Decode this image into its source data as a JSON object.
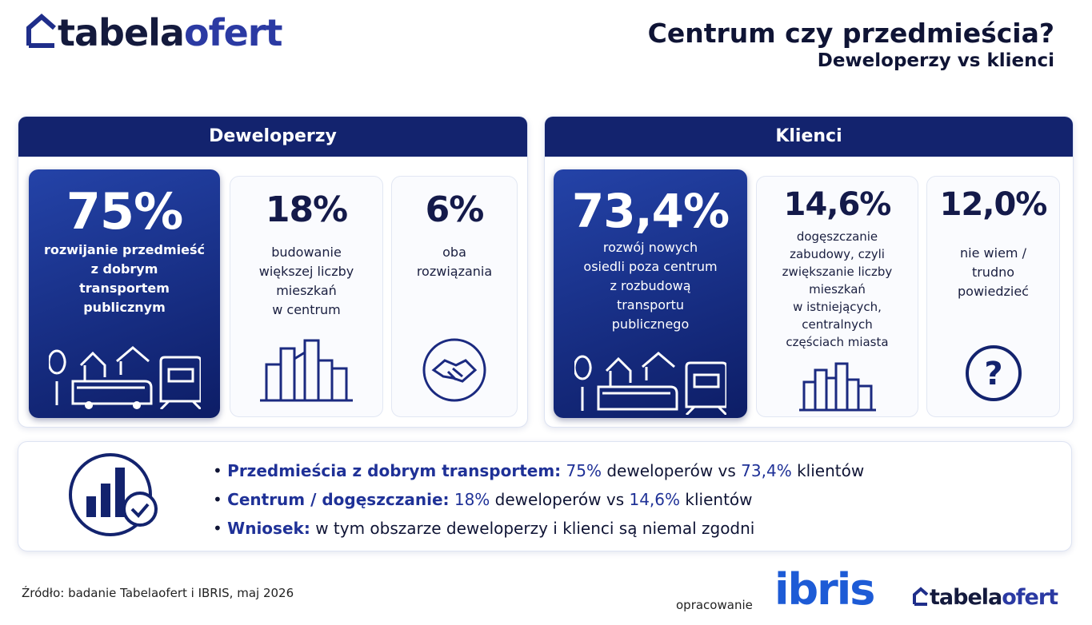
{
  "header": {
    "logo": {
      "part1": "tabela",
      "part2": "ofert"
    },
    "title": "Centrum czy przedmieścia?",
    "subtitle": "Deweloperzy vs klienci"
  },
  "panels": [
    {
      "title": "Deweloperzy",
      "cards": [
        {
          "value": "75%",
          "label": [
            "rozwijanie przedmieść",
            "z dobrym",
            "transportem",
            "publicznym"
          ]
        },
        {
          "value": "18%",
          "label": [
            "budowanie",
            "większej liczby",
            "mieszkań",
            "w centrum"
          ]
        },
        {
          "value": "6%",
          "label": [
            "oba",
            "rozwiązania"
          ]
        }
      ]
    },
    {
      "title": "Klienci",
      "cards": [
        {
          "value": "73,4%",
          "label": [
            "rozwój nowych",
            "osiedli poza centrum",
            "z rozbudową",
            "transportu",
            "publicznego"
          ]
        },
        {
          "value": "14,6%",
          "label": [
            "dogęszczanie",
            "zabudowy, czyli",
            "zwiększanie liczby",
            "mieszkań",
            "w istniejących,",
            "centralnych",
            "częściach miasta"
          ]
        },
        {
          "value": "12,0%",
          "label": [
            "nie wiem /",
            "trudno",
            "powiedzieć"
          ]
        }
      ]
    }
  ],
  "summary": {
    "lines": [
      [
        "Przedmieścia z dobrym transportem:",
        "75%",
        "deweloperów vs",
        "73,4%",
        "klientów"
      ],
      [
        "Centrum / dogęszczanie:",
        "18%",
        "deweloperów vs",
        "14,6%",
        "klientów"
      ],
      [
        "Wniosek:",
        "w tym obszarze deweloperzy i klienci są niemal zgodni"
      ]
    ]
  },
  "footer": {
    "source": "Źródło: badanie Tabelaofert  i IBRIS, maj 2026",
    "credit": "opracowanie",
    "partner": "ibris",
    "logo": {
      "part1": "tabela",
      "part2": "ofert"
    }
  }
}
